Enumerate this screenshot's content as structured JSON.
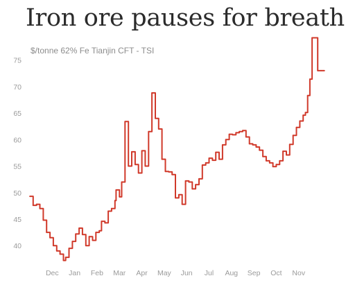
{
  "chart_data": {
    "type": "line",
    "title": "Iron ore pauses for breath",
    "subtitle": "$/tonne 62% Fe Tianjin CFT - TSI",
    "xlabel": "",
    "ylabel": "",
    "ylim": [
      36.5,
      79
    ],
    "xlim": [
      0,
      13.4
    ],
    "y_ticks": [
      40,
      45,
      50,
      55,
      60,
      65,
      70,
      75
    ],
    "x_ticks": [
      {
        "label": "Dec",
        "x": 1.0
      },
      {
        "label": "Jan",
        "x": 2.0
      },
      {
        "label": "Feb",
        "x": 3.0
      },
      {
        "label": "Mar",
        "x": 4.0
      },
      {
        "label": "Apr",
        "x": 5.0
      },
      {
        "label": "May",
        "x": 6.0
      },
      {
        "label": "Jun",
        "x": 7.0
      },
      {
        "label": "Jul",
        "x": 8.0
      },
      {
        "label": "Aug",
        "x": 9.0
      },
      {
        "label": "Sep",
        "x": 10.0
      },
      {
        "label": "Oct",
        "x": 11.0
      },
      {
        "label": "Nov",
        "x": 12.0
      }
    ],
    "grid": false,
    "legend": "none",
    "color": "#d0392a",
    "series": [
      {
        "x": [
          0.0,
          0.15,
          0.3,
          0.45,
          0.6,
          0.75,
          0.9,
          1.05,
          1.2,
          1.35,
          1.5,
          1.6,
          1.75,
          1.9,
          2.05,
          2.2,
          2.35,
          2.5,
          2.65,
          2.8,
          2.95,
          3.1,
          3.2,
          3.35,
          3.5,
          3.65,
          3.8,
          3.85,
          4.0,
          4.1,
          4.25,
          4.4,
          4.55,
          4.7,
          4.85,
          5.0,
          5.15,
          5.3,
          5.45,
          5.6,
          5.75,
          5.9,
          6.05,
          6.2,
          6.35,
          6.5,
          6.65,
          6.8,
          6.95,
          7.1,
          7.25,
          7.4,
          7.55,
          7.7,
          7.85,
          8.0,
          8.15,
          8.3,
          8.45,
          8.6,
          8.75,
          8.9,
          9.05,
          9.2,
          9.35,
          9.5,
          9.65,
          9.8,
          9.95,
          10.1,
          10.25,
          10.4,
          10.55,
          10.7,
          10.85,
          11.0,
          11.15,
          11.3,
          11.45,
          11.6,
          11.75,
          11.9,
          12.05,
          12.2,
          12.3,
          12.4,
          12.5,
          12.6,
          12.75,
          12.85,
          13.0,
          13.15
        ],
        "values": [
          49.3,
          47.6,
          47.8,
          47.0,
          44.8,
          42.5,
          41.5,
          40.0,
          39.0,
          38.4,
          37.2,
          37.8,
          39.5,
          40.8,
          42.2,
          43.3,
          42.1,
          40.0,
          41.7,
          41.0,
          42.5,
          42.8,
          44.6,
          44.3,
          46.5,
          47.0,
          48.5,
          50.5,
          49.2,
          52.0,
          63.4,
          55.0,
          57.7,
          55.3,
          53.7,
          57.9,
          55.0,
          61.5,
          68.8,
          64.0,
          62.0,
          56.3,
          54.0,
          53.9,
          53.4,
          49.0,
          49.6,
          47.8,
          52.2,
          52.0,
          50.7,
          51.5,
          52.6,
          55.2,
          55.6,
          56.5,
          56.1,
          57.6,
          56.3,
          59.0,
          60.0,
          61.0,
          60.9,
          61.3,
          61.5,
          61.7,
          60.5,
          59.2,
          59.0,
          58.6,
          58.0,
          56.8,
          56.0,
          55.6,
          54.9,
          55.3,
          56.0,
          57.8,
          57.1,
          59.1,
          60.8,
          62.3,
          63.5,
          64.6,
          65.1,
          68.3,
          71.4,
          79.2,
          79.2,
          73.0,
          73.0,
          73.0
        ]
      }
    ]
  }
}
